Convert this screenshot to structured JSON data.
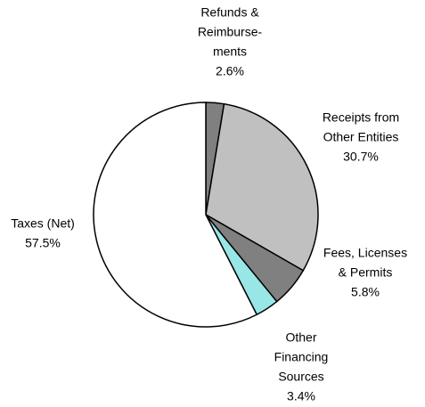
{
  "chart_data": {
    "type": "pie",
    "categories": [
      [
        "Refunds &",
        "Reimburse-",
        "ments"
      ],
      [
        "Receipts from",
        "Other Entities"
      ],
      [
        "Fees, Licenses",
        "& Permits"
      ],
      [
        "Other",
        "Financing",
        "Sources"
      ],
      [
        "Taxes (Net)"
      ]
    ],
    "values": [
      2.6,
      30.7,
      5.8,
      3.4,
      57.5
    ],
    "value_labels": [
      "2.6%",
      "30.7%",
      "5.8%",
      "3.4%",
      "57.5%"
    ],
    "colors": [
      "#808080",
      "#c0c0c0",
      "#808080",
      "#99e6e6",
      "#ffffff"
    ]
  }
}
